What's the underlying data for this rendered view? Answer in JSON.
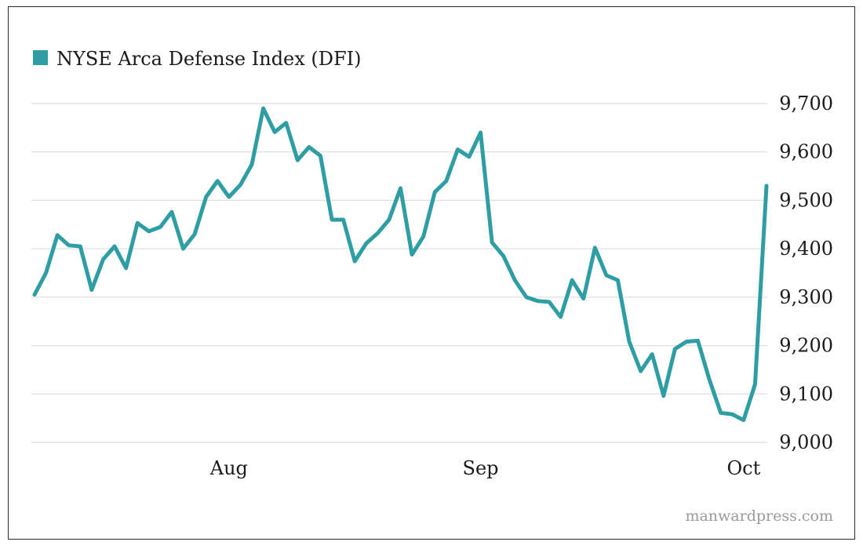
{
  "chart_data": {
    "type": "line",
    "title": "",
    "legend": [
      {
        "name": "NYSE Arca Defense Index (DFI)",
        "color": "#2e9ea4"
      }
    ],
    "legend_position": "top-left",
    "ylabel": "",
    "xlabel": "",
    "ylim": [
      9000,
      9700
    ],
    "yticks": [
      9000,
      9100,
      9200,
      9300,
      9400,
      9500,
      9600,
      9700
    ],
    "ytick_labels": [
      "9,000",
      "9,100",
      "9,200",
      "9,300",
      "9,400",
      "9,500",
      "9,600",
      "9,700"
    ],
    "grid": true,
    "xticks": [
      {
        "index": 17,
        "label": "Aug"
      },
      {
        "index": 39,
        "label": "Sep"
      },
      {
        "index": 62,
        "label": "Oct"
      }
    ],
    "series": [
      {
        "name": "NYSE Arca Defense Index (DFI)",
        "values": [
          9305,
          9350,
          9428,
          9407,
          9405,
          9315,
          9378,
          9405,
          9360,
          9453,
          9436,
          9445,
          9476,
          9400,
          9430,
          9507,
          9540,
          9507,
          9532,
          9574,
          9690,
          9641,
          9660,
          9583,
          9610,
          9592,
          9460,
          9460,
          9374,
          9411,
          9432,
          9460,
          9525,
          9388,
          9425,
          9517,
          9540,
          9605,
          9590,
          9640,
          9413,
          9385,
          9335,
          9300,
          9292,
          9290,
          9259,
          9335,
          9297,
          9402,
          9345,
          9335,
          9208,
          9147,
          9182,
          9096,
          9193,
          9208,
          9210,
          9130,
          9061,
          9058,
          9046,
          9120,
          9530
        ]
      }
    ]
  },
  "watermark": "manwardpress.com"
}
